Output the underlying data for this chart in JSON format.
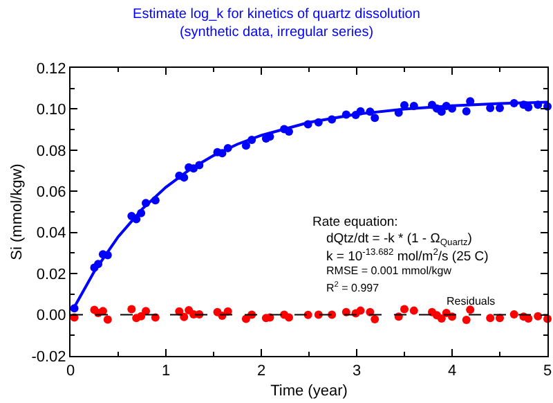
{
  "chart_data": {
    "type": "scatter",
    "title": "Estimate log_k for kinetics of quartz dissolution",
    "subtitle": "(synthetic data, irregular series)",
    "xlabel": "Time (year)",
    "ylabel": "Si (mmol/kgw)",
    "xlim": [
      0,
      5
    ],
    "xticks": [
      0,
      1,
      2,
      3,
      4,
      5
    ],
    "ylim": [
      -0.02,
      0.12
    ],
    "yticks": [
      {
        "value": -0.02,
        "label": "-0.02"
      },
      {
        "value": 0,
        "label": "0.00"
      },
      {
        "value": 0.02,
        "label": "0.02"
      },
      {
        "value": 0.04,
        "label": "0.04"
      },
      {
        "value": 0.06,
        "label": "0.06"
      },
      {
        "value": 0.08,
        "label": "0.08"
      },
      {
        "value": 0.1,
        "label": "0.10"
      },
      {
        "value": 0.12,
        "label": "0.12"
      }
    ],
    "grid": false,
    "marker": "circle",
    "series": [
      {
        "type": "line",
        "color": "#0000ff",
        "marker": "none",
        "line_style": "solid",
        "x": [
          0.04,
          0.25,
          0.5,
          0.75,
          1,
          1.25,
          1.5,
          1.75,
          2,
          2.5,
          3,
          3.5,
          4,
          4.5,
          5
        ],
        "values": [
          0.0037,
          0.0211,
          0.0379,
          0.0513,
          0.062,
          0.0706,
          0.0774,
          0.0829,
          0.0872,
          0.0935,
          0.0975,
          0.1,
          0.1016,
          0.1027,
          0.1033
        ]
      },
      {
        "color": "#0000ff",
        "x": [
          0.04,
          0.25,
          0.29,
          0.34,
          0.39,
          0.64,
          0.69,
          0.74,
          0.79,
          0.89,
          1.14,
          1.19,
          1.24,
          1.29,
          1.35,
          1.54,
          1.59,
          1.65,
          1.84,
          1.9,
          2.05,
          2.09,
          2.24,
          2.29,
          2.49,
          2.6,
          2.74,
          2.89,
          2.99,
          3.04,
          3.14,
          3.19,
          3.44,
          3.5,
          3.6,
          3.79,
          3.84,
          3.89,
          3.94,
          4,
          4.15,
          4.19,
          4.4,
          4.5,
          4.65,
          4.75,
          4.8,
          4.9,
          5
        ],
        "values": [
          0.0031,
          0.0229,
          0.0247,
          0.0294,
          0.029,
          0.048,
          0.0465,
          0.0494,
          0.0543,
          0.0556,
          0.0676,
          0.0667,
          0.0716,
          0.0711,
          0.0727,
          0.079,
          0.0785,
          0.081,
          0.0822,
          0.085,
          0.0857,
          0.0866,
          0.0902,
          0.089,
          0.0926,
          0.0935,
          0.0949,
          0.0973,
          0.0971,
          0.0989,
          0.0987,
          0.0957,
          0.0982,
          0.1018,
          0.1015,
          0.102,
          0.1002,
          0.0987,
          0.1015,
          0.1002,
          0.0989,
          0.1038,
          0.1005,
          0.1005,
          0.1028,
          0.1021,
          0.1008,
          0.1021,
          0.1012
        ]
      },
      {
        "color": "#ff0000",
        "x": [
          0.04,
          0.25,
          0.29,
          0.34,
          0.39,
          0.64,
          0.69,
          0.74,
          0.79,
          0.89,
          1.14,
          1.19,
          1.24,
          1.29,
          1.35,
          1.54,
          1.59,
          1.65,
          1.84,
          1.9,
          2.05,
          2.09,
          2.24,
          2.29,
          2.49,
          2.6,
          2.74,
          2.89,
          2.99,
          3.04,
          3.14,
          3.19,
          3.44,
          3.5,
          3.6,
          3.79,
          3.84,
          3.89,
          3.94,
          4,
          4.15,
          4.19,
          4.4,
          4.5,
          4.65,
          4.75,
          4.8,
          4.9,
          5
        ],
        "values": [
          -0.0013,
          0.0024,
          0.0009,
          0.0018,
          -0.0023,
          0.0027,
          -0.0016,
          -0.0007,
          0.0018,
          -0.0013,
          0.0016,
          -0.0011,
          0.0022,
          0.0002,
          0.0002,
          0.0013,
          -0.0005,
          0.0016,
          -0.002,
          0,
          -0.0016,
          -0.0013,
          0,
          -0.0013,
          -0.0001,
          0,
          0,
          0.0013,
          0.0007,
          0.002,
          0.0013,
          -0.0022,
          -0.0009,
          0.0027,
          0.002,
          0.0013,
          -0.0002,
          -0.0018,
          0.0009,
          -0.0009,
          -0.0025,
          0.0025,
          -0.0016,
          -0.0016,
          0.0002,
          -0.0009,
          -0.0018,
          -0.0007,
          -0.002
        ]
      }
    ],
    "ref_lines": [
      {
        "axis": "y",
        "value": 0,
        "color": "#000000",
        "line_style": "dashed"
      }
    ],
    "annotations": [
      "Rate equation:",
      "dQtz/dt = -k * (1 - Ω$_{Quartz}$)",
      "k = 10$^{-13.682}$ mol/m$^{2}$/s (25 C)",
      "RMSE = 0.001 mmol/kgw",
      "R$^{2}$ = 0.997",
      {
        "text": "Residuals",
        "x": 4.2,
        "y": 0.0063
      }
    ]
  }
}
